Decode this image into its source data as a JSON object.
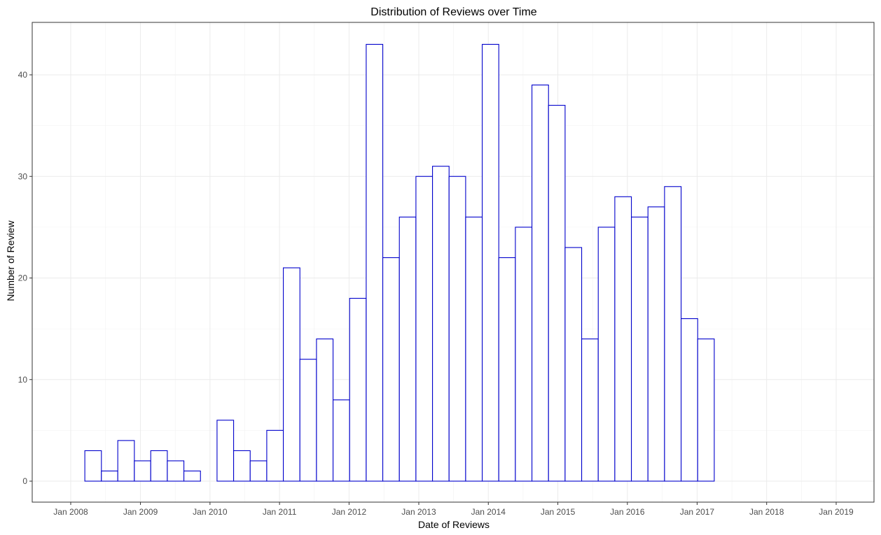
{
  "chart_data": {
    "type": "bar",
    "title": "Distribution of Reviews over Time",
    "xlabel": "Date of Reviews",
    "ylabel": "Number of Review",
    "bar_outline_color": "#0000cc",
    "grid": true,
    "legend": "none",
    "xlim": [
      "2008-01-01",
      "2019-01-01"
    ],
    "ylim": [
      0,
      45
    ],
    "x_ticks": [
      {
        "date": "2008-01-01",
        "label": "Jan 2008"
      },
      {
        "date": "2009-01-01",
        "label": "Jan 2009"
      },
      {
        "date": "2010-01-01",
        "label": "Jan 2010"
      },
      {
        "date": "2011-01-01",
        "label": "Jan 2011"
      },
      {
        "date": "2012-01-01",
        "label": "Jan 2012"
      },
      {
        "date": "2013-01-01",
        "label": "Jan 2013"
      },
      {
        "date": "2014-01-01",
        "label": "Jan 2014"
      },
      {
        "date": "2015-01-01",
        "label": "Jan 2015"
      },
      {
        "date": "2016-01-01",
        "label": "Jan 2016"
      },
      {
        "date": "2017-01-01",
        "label": "Jan 2017"
      },
      {
        "date": "2018-01-01",
        "label": "Jan 2018"
      },
      {
        "date": "2019-01-01",
        "label": "Jan 2019"
      }
    ],
    "y_ticks": [
      0,
      10,
      20,
      30,
      40
    ],
    "bins": [
      {
        "start": "2008-03-15",
        "end": "2008-06-10",
        "value": 3
      },
      {
        "start": "2008-06-10",
        "end": "2008-09-04",
        "value": 1
      },
      {
        "start": "2008-09-04",
        "end": "2008-11-30",
        "value": 4
      },
      {
        "start": "2008-11-30",
        "end": "2009-02-24",
        "value": 2
      },
      {
        "start": "2009-02-24",
        "end": "2009-05-22",
        "value": 3
      },
      {
        "start": "2009-05-22",
        "end": "2009-08-17",
        "value": 2
      },
      {
        "start": "2009-08-17",
        "end": "2009-11-12",
        "value": 1
      },
      {
        "start": "2009-11-12",
        "end": "2010-02-07",
        "value": 0
      },
      {
        "start": "2010-02-07",
        "end": "2010-05-05",
        "value": 6
      },
      {
        "start": "2010-05-05",
        "end": "2010-07-31",
        "value": 3
      },
      {
        "start": "2010-07-31",
        "end": "2010-10-26",
        "value": 2
      },
      {
        "start": "2010-10-26",
        "end": "2011-01-21",
        "value": 5
      },
      {
        "start": "2011-01-21",
        "end": "2011-04-18",
        "value": 21
      },
      {
        "start": "2011-04-18",
        "end": "2011-07-14",
        "value": 12
      },
      {
        "start": "2011-07-14",
        "end": "2011-10-09",
        "value": 14
      },
      {
        "start": "2011-10-09",
        "end": "2012-01-04",
        "value": 8
      },
      {
        "start": "2012-01-04",
        "end": "2012-03-31",
        "value": 18
      },
      {
        "start": "2012-03-31",
        "end": "2012-06-26",
        "value": 43
      },
      {
        "start": "2012-06-26",
        "end": "2012-09-21",
        "value": 22
      },
      {
        "start": "2012-09-21",
        "end": "2012-12-17",
        "value": 26
      },
      {
        "start": "2012-12-17",
        "end": "2013-03-14",
        "value": 30
      },
      {
        "start": "2013-03-14",
        "end": "2013-06-09",
        "value": 31
      },
      {
        "start": "2013-06-09",
        "end": "2013-09-04",
        "value": 30
      },
      {
        "start": "2013-09-04",
        "end": "2013-11-30",
        "value": 26
      },
      {
        "start": "2013-11-30",
        "end": "2014-02-25",
        "value": 43
      },
      {
        "start": "2014-02-25",
        "end": "2014-05-23",
        "value": 22
      },
      {
        "start": "2014-05-23",
        "end": "2014-08-18",
        "value": 25
      },
      {
        "start": "2014-08-18",
        "end": "2014-11-13",
        "value": 39
      },
      {
        "start": "2014-11-13",
        "end": "2015-02-08",
        "value": 37
      },
      {
        "start": "2015-02-08",
        "end": "2015-05-06",
        "value": 23
      },
      {
        "start": "2015-05-06",
        "end": "2015-08-01",
        "value": 14
      },
      {
        "start": "2015-08-01",
        "end": "2015-10-27",
        "value": 25
      },
      {
        "start": "2015-10-27",
        "end": "2016-01-22",
        "value": 28
      },
      {
        "start": "2016-01-22",
        "end": "2016-04-18",
        "value": 26
      },
      {
        "start": "2016-04-18",
        "end": "2016-07-14",
        "value": 27
      },
      {
        "start": "2016-07-14",
        "end": "2016-10-09",
        "value": 29
      },
      {
        "start": "2016-10-09",
        "end": "2017-01-04",
        "value": 16
      },
      {
        "start": "2017-01-04",
        "end": "2017-04-01",
        "value": 14
      }
    ]
  }
}
